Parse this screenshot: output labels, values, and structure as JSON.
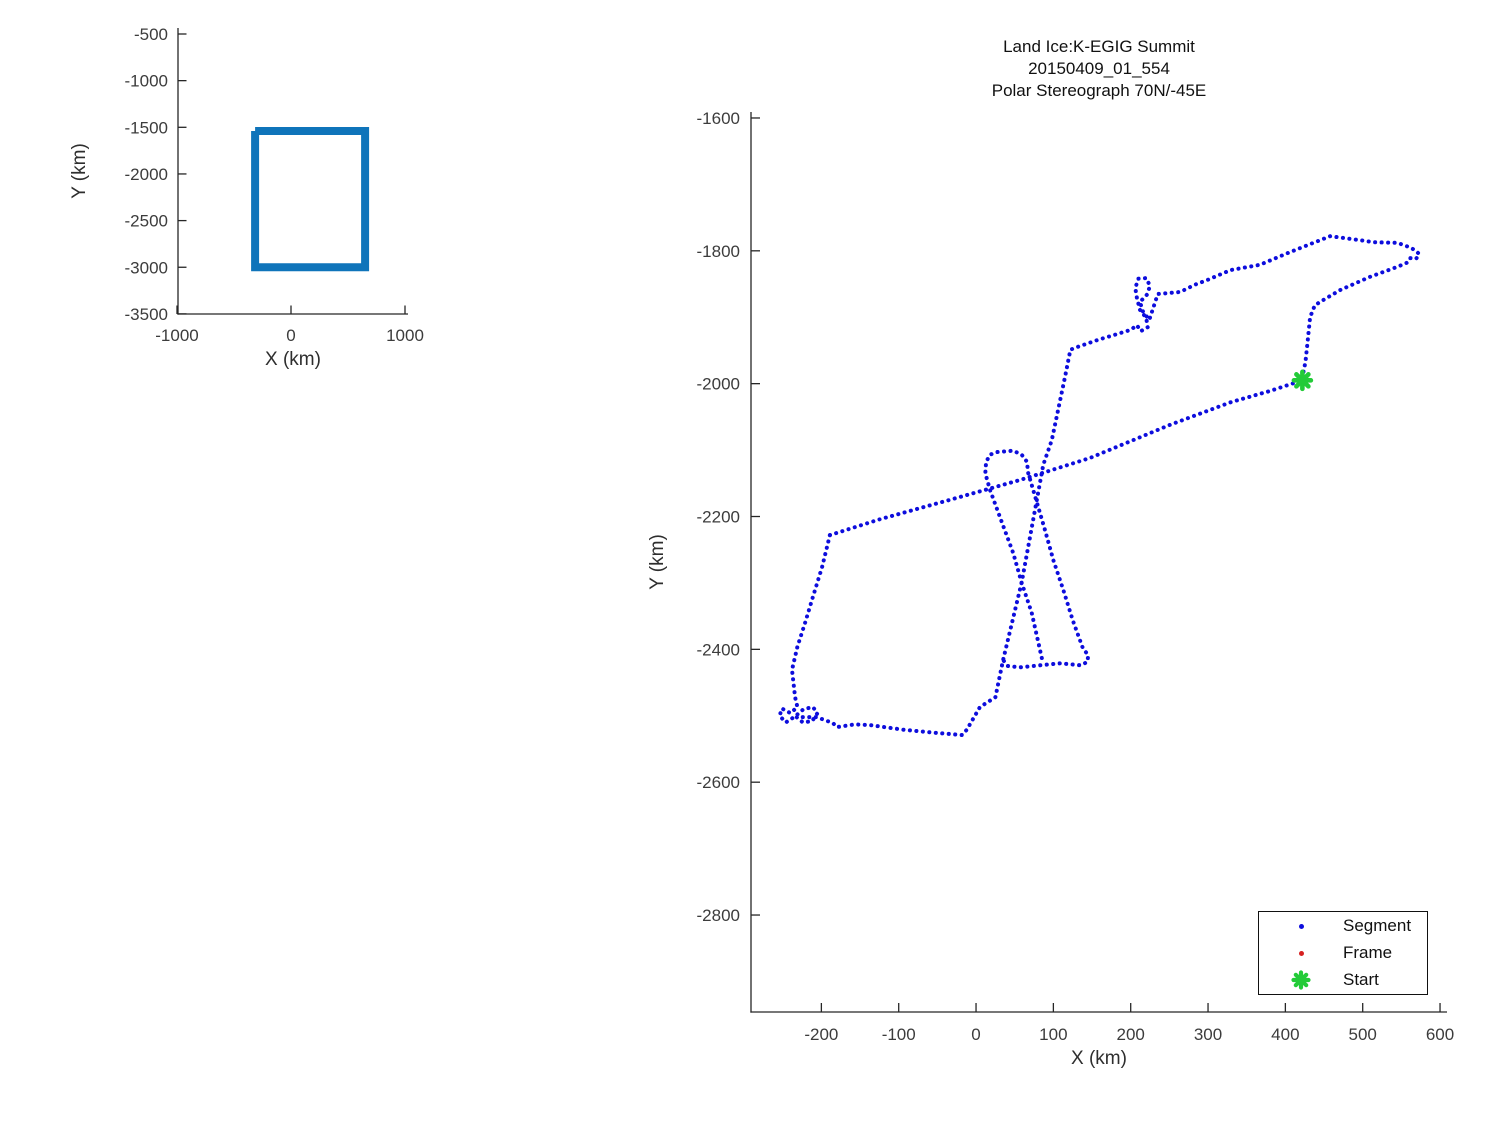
{
  "chart_data": [
    {
      "name": "overview-map",
      "type": "line",
      "xlabel": "X (km)",
      "ylabel": "Y (km)",
      "x_ticks": [
        -1000,
        0,
        1000
      ],
      "y_ticks": [
        -500,
        -1000,
        -1500,
        -2000,
        -2500,
        -3000,
        -3500
      ],
      "xlim": [
        -990,
        1030
      ],
      "ylim": [
        -3500,
        -435
      ],
      "grid": false,
      "series": [
        {
          "name": "coverage-outline",
          "color": "#0f74ba",
          "style": "solid-thick",
          "points": [
            [
              -315,
              -1540
            ],
            [
              650,
              -1540
            ],
            [
              650,
              -3000
            ],
            [
              -315,
              -3000
            ],
            [
              -315,
              -1540
            ]
          ]
        }
      ]
    },
    {
      "name": "flight-track",
      "type": "scatter",
      "title_lines": [
        "Land Ice:K-EGIG Summit",
        "20150409_01_554",
        "Polar Stereograph 70N/-45E"
      ],
      "xlabel": "X (km)",
      "ylabel": "Y (km)",
      "x_ticks": [
        -200,
        -100,
        0,
        100,
        200,
        300,
        400,
        500,
        600
      ],
      "y_ticks": [
        -1600,
        -1800,
        -2000,
        -2200,
        -2400,
        -2600,
        -2800
      ],
      "xlim": [
        -291,
        609
      ],
      "ylim": [
        -2946,
        -1591
      ],
      "grid": false,
      "colors": {
        "segment": "#0d0ddd",
        "frame": "#d62020",
        "start": "#23cb38"
      },
      "start_point": [
        422,
        -1995
      ],
      "series": [
        {
          "name": "segment-track-grand-tour",
          "points": [
            [
              -189,
              -2228
            ],
            [
              -199,
              -2276
            ],
            [
              -211,
              -2321
            ],
            [
              -221,
              -2360
            ],
            [
              -231,
              -2396
            ],
            [
              -238,
              -2431
            ],
            [
              -234,
              -2472
            ],
            [
              -231,
              -2487
            ],
            [
              -240,
              -2496
            ],
            [
              -251,
              -2489
            ],
            [
              -254,
              -2500
            ],
            [
              -246,
              -2510
            ],
            [
              -234,
              -2501
            ],
            [
              -223,
              -2490
            ],
            [
              -211,
              -2487
            ],
            [
              -205,
              -2496
            ],
            [
              -212,
              -2508
            ],
            [
              -224,
              -2510
            ],
            [
              -232,
              -2502
            ],
            [
              -206,
              -2502
            ],
            [
              -185,
              -2511
            ],
            [
              -180,
              -2517
            ],
            [
              -157,
              -2513
            ],
            [
              -137,
              -2514
            ],
            [
              -94,
              -2521
            ],
            [
              -50,
              -2526
            ],
            [
              -18,
              -2529
            ],
            [
              -12,
              -2521
            ],
            [
              5,
              -2487
            ],
            [
              25,
              -2472
            ],
            [
              35,
              -2416
            ],
            [
              59,
              -2299
            ],
            [
              87,
              -2122
            ],
            [
              98,
              -2085
            ],
            [
              115,
              -1990
            ],
            [
              122,
              -1949
            ],
            [
              128,
              -1946
            ],
            [
              158,
              -1934
            ],
            [
              186,
              -1924
            ],
            [
              200,
              -1919
            ],
            [
              208,
              -1912
            ],
            [
              213,
              -1921
            ],
            [
              222,
              -1915
            ],
            [
              220,
              -1901
            ],
            [
              212,
              -1889
            ],
            [
              208,
              -1871
            ],
            [
              206,
              -1856
            ],
            [
              210,
              -1842
            ],
            [
              220,
              -1841
            ],
            [
              225,
              -1853
            ],
            [
              221,
              -1866
            ],
            [
              212,
              -1877
            ],
            [
              216,
              -1892
            ],
            [
              224,
              -1904
            ],
            [
              235,
              -1865
            ],
            [
              264,
              -1862
            ],
            [
              283,
              -1851
            ],
            [
              299,
              -1844
            ],
            [
              329,
              -1829
            ],
            [
              367,
              -1821
            ],
            [
              406,
              -1802
            ],
            [
              458,
              -1778
            ],
            [
              497,
              -1784
            ],
            [
              514,
              -1787
            ],
            [
              545,
              -1788
            ],
            [
              559,
              -1794
            ],
            [
              568,
              -1799
            ],
            [
              573,
              -1805
            ],
            [
              569,
              -1812
            ],
            [
              561,
              -1811
            ],
            [
              557,
              -1818
            ],
            [
              545,
              -1824
            ],
            [
              510,
              -1839
            ],
            [
              471,
              -1859
            ],
            [
              449,
              -1874
            ],
            [
              438,
              -1882
            ],
            [
              432,
              -1900
            ],
            [
              429,
              -1934
            ],
            [
              426,
              -1967
            ],
            [
              422,
              -1990
            ]
          ]
        },
        {
          "name": "segment-track-transit",
          "points": [
            [
              -189,
              -2228
            ],
            [
              -124,
              -2204
            ],
            [
              -34,
              -2175
            ],
            [
              57,
              -2145
            ],
            [
              147,
              -2112
            ],
            [
              251,
              -2062
            ],
            [
              329,
              -2028
            ],
            [
              380,
              -2011
            ],
            [
              422,
              -1995
            ]
          ]
        },
        {
          "name": "segment-track-racetrack",
          "points": [
            [
              85,
              -2413
            ],
            [
              72,
              -2345
            ],
            [
              59,
              -2300
            ],
            [
              48,
              -2255
            ],
            [
              31,
              -2201
            ],
            [
              18,
              -2160
            ],
            [
              12,
              -2135
            ],
            [
              13,
              -2118
            ],
            [
              18,
              -2107
            ],
            [
              27,
              -2103
            ],
            [
              48,
              -2101
            ],
            [
              59,
              -2107
            ],
            [
              66,
              -2118
            ],
            [
              67,
              -2133
            ],
            [
              79,
              -2180
            ],
            [
              89,
              -2220
            ],
            [
              100,
              -2266
            ],
            [
              113,
              -2311
            ],
            [
              125,
              -2356
            ],
            [
              138,
              -2398
            ],
            [
              145,
              -2409
            ],
            [
              144,
              -2419
            ],
            [
              135,
              -2424
            ],
            [
              109,
              -2421
            ],
            [
              83,
              -2424
            ],
            [
              57,
              -2427
            ],
            [
              41,
              -2425
            ],
            [
              35,
              -2416
            ]
          ]
        }
      ],
      "legend": {
        "position": "bottom-right",
        "items": [
          {
            "label": "Segment",
            "marker": "dot",
            "color": "#0d0ddd"
          },
          {
            "label": "Frame",
            "marker": "dot",
            "color": "#d62020"
          },
          {
            "label": "Start",
            "marker": "star",
            "color": "#23cb38"
          }
        ]
      }
    }
  ]
}
